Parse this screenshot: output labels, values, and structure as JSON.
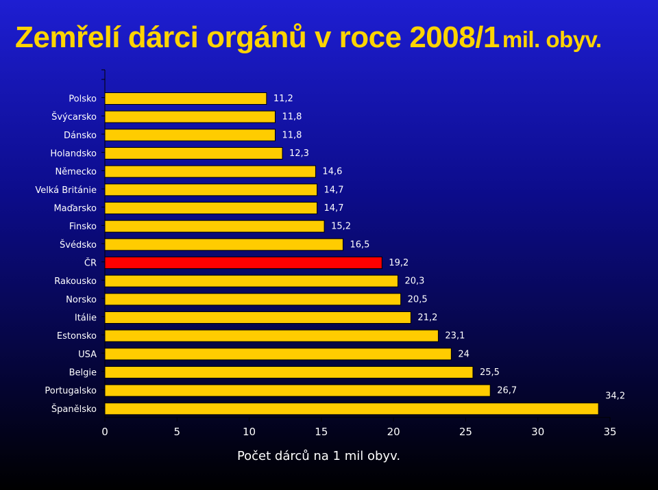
{
  "title": {
    "main": "Zemřelí dárci orgánů v roce 2008/1",
    "unit": "mil. obyv."
  },
  "chart_data": {
    "type": "bar",
    "orientation": "horizontal",
    "categories": [
      "Polsko",
      "Švýcarsko",
      "Dánsko",
      "Holandsko",
      "Německo",
      "Velká Británie",
      "Maďarsko",
      "Finsko",
      "Švédsko",
      "ČR",
      "Rakousko",
      "Norsko",
      "Itálie",
      "Estonsko",
      "USA",
      "Belgie",
      "Portugalsko",
      "Španělsko"
    ],
    "values": [
      11.2,
      11.8,
      11.8,
      12.3,
      14.6,
      14.7,
      14.7,
      15.2,
      16.5,
      19.2,
      20.3,
      20.5,
      21.2,
      23.1,
      24,
      25.5,
      26.7,
      34.2
    ],
    "value_labels": [
      "11,2",
      "11,8",
      "11,8",
      "12,3",
      "14,6",
      "14,7",
      "14,7",
      "15,2",
      "16,5",
      "19,2",
      "20,3",
      "20,5",
      "21,2",
      "23,1",
      "24",
      "25,5",
      "26,7",
      "34,2"
    ],
    "highlight_category": "ČR",
    "xlabel": "Počet dárců na 1 mil obyv.",
    "ylabel": "",
    "xlim": [
      0,
      35
    ],
    "xticks": [
      0,
      5,
      10,
      15,
      20,
      25,
      30,
      35
    ],
    "grid": false,
    "legend": "none",
    "colors": {
      "bar": "#ffcc00",
      "highlight": "#ff0000",
      "title": "#ffd400",
      "text": "#ffffff"
    }
  }
}
